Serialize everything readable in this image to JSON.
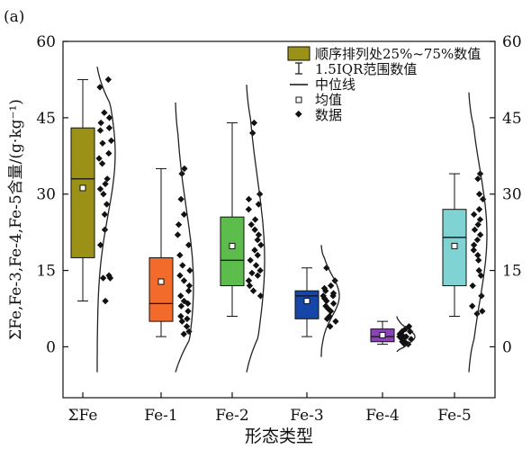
{
  "panel_label": "(a)",
  "chart_data": {
    "type": "box",
    "xlabel": "形态类型",
    "ylabel": "ΣFe,Fe-3,Fe-4,Fe-5含量/(g·kg⁻¹)",
    "ylim": [
      -10,
      60
    ],
    "yticks": [
      0,
      15,
      30,
      45,
      60
    ],
    "right_axis_ticks": [
      0,
      15,
      30,
      45,
      60
    ],
    "grid": false,
    "legend_position": "top-right",
    "legend": {
      "box": "顺序排列处25%~75%数值",
      "whisker": "1.5IQR范围数值",
      "median": "中位线",
      "mean": "均值",
      "points": "数据"
    },
    "categories": [
      "ΣFe",
      "Fe-1",
      "Fe-2",
      "Fe-3",
      "Fe-4",
      "Fe-5"
    ],
    "colors": [
      "#9a9116",
      "#f26b2a",
      "#5cbd4c",
      "#1646a8",
      "#8b43b5",
      "#7fd3d3"
    ],
    "series": [
      {
        "category": "ΣFe",
        "min": 9,
        "q1": 17.5,
        "median": 33,
        "q3": 43,
        "max": 52.5,
        "mean": 31.2,
        "points": [
          52.5,
          51,
          46,
          45,
          44,
          43,
          42.5,
          40.5,
          40,
          38,
          37,
          36,
          33,
          32,
          31,
          30,
          28,
          26,
          23,
          20,
          14,
          13.5,
          13.5,
          9
        ],
        "density": {
          "low": -5,
          "high": 55,
          "peak": 38,
          "width": 12,
          "lobes": [
            0.5,
            9
          ]
        }
      },
      {
        "category": "Fe-1",
        "min": 2,
        "q1": 5,
        "median": 8.5,
        "q3": 17.5,
        "max": 35,
        "mean": 12.8,
        "points": [
          35,
          34,
          29,
          26,
          24,
          22,
          20,
          18,
          16,
          15,
          14,
          13,
          12,
          11,
          10,
          9,
          8.5,
          8,
          7,
          6,
          5.5,
          5,
          4,
          3,
          2.5
        ],
        "density": {
          "low": -5,
          "high": 48,
          "peak": 12,
          "width": 15,
          "lobes": [
            0,
            0
          ]
        }
      },
      {
        "category": "Fe-2",
        "min": 6,
        "q1": 12,
        "median": 17,
        "q3": 25.5,
        "max": 44,
        "mean": 19.8,
        "points": [
          44,
          42,
          30,
          29,
          28,
          27,
          25,
          24,
          23,
          22,
          21,
          20,
          19,
          18,
          17,
          16,
          15,
          14.5,
          14,
          13,
          12,
          11,
          10
        ],
        "density": {
          "low": -5,
          "high": 51.5,
          "peak": 17,
          "width": 16,
          "lobes": [
            0,
            0
          ]
        }
      },
      {
        "category": "Fe-3",
        "min": 2,
        "q1": 5.5,
        "median": 10,
        "q3": 11,
        "max": 15.5,
        "mean": 9,
        "points": [
          15.5,
          13,
          12,
          11.5,
          11,
          10.5,
          10,
          10,
          9.5,
          9,
          8.5,
          8,
          7.5,
          7,
          6,
          5.5,
          5,
          4
        ],
        "density": {
          "low": -2,
          "high": 20,
          "peak": 10,
          "width": 4,
          "lobes": [
            0,
            0
          ]
        }
      },
      {
        "category": "Fe-4",
        "min": 0.5,
        "q1": 1,
        "median": 2,
        "q3": 3.5,
        "max": 5,
        "mean": 2.3,
        "points": [
          4,
          3.5,
          3,
          3,
          2.5,
          2.5,
          2,
          2,
          2,
          1.5,
          1.5,
          1,
          1,
          0.5,
          0.5
        ],
        "density": {
          "low": -1,
          "high": 6,
          "peak": 2,
          "width": 1.5,
          "lobes": [
            0,
            0
          ]
        }
      },
      {
        "category": "Fe-5",
        "min": 6,
        "q1": 12,
        "median": 21.5,
        "q3": 27,
        "max": 34,
        "mean": 19.8,
        "points": [
          34,
          33,
          30,
          29,
          27,
          26,
          25,
          24,
          23,
          22,
          21,
          20,
          19,
          18,
          17,
          15,
          14,
          12,
          10,
          8,
          7,
          6.5
        ],
        "density": {
          "low": -5,
          "high": 50,
          "peak": 22,
          "width": 13,
          "lobes": [
            0,
            0
          ]
        }
      }
    ]
  }
}
